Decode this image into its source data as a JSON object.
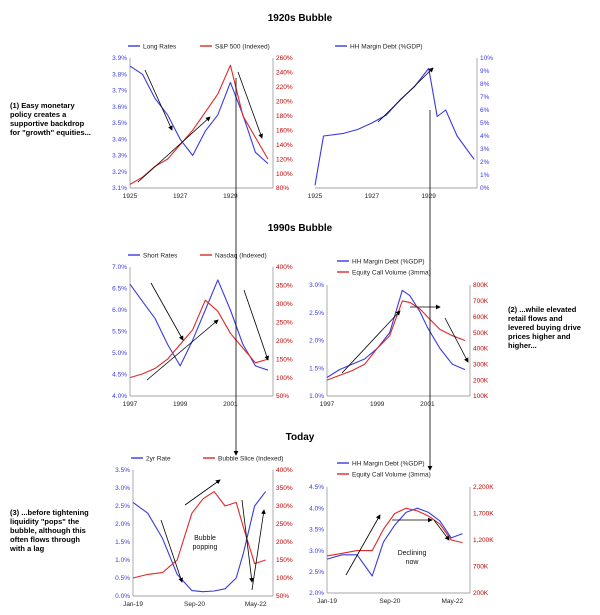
{
  "sections": {
    "s1": "1920s Bubble",
    "s2": "1990s Bubble",
    "s3": "Today"
  },
  "annotations": {
    "a1": [
      "(1) Easy monetary",
      "policy creates a",
      "supportive backdrop",
      "for \"growth\" equities..."
    ],
    "a2": [
      "(2) ...while elevated",
      "retail flows and",
      "levered buying drive",
      "prices higher and",
      "higher..."
    ],
    "a3": [
      "(3) ...before tightening",
      "liquidity \"pops\" the",
      "bubble, although this",
      "often flows through",
      "with a lag"
    ]
  },
  "colors": {
    "blue": "#3a3ae0",
    "red": "#e02828",
    "axisRed": "#c00000",
    "axis": "#888888"
  },
  "chart_data": [
    {
      "id": "c1",
      "type": "line",
      "legend": [
        "Long Rates",
        "S&P 500 (Indexed)"
      ],
      "x": [
        1925,
        1925.5,
        1926,
        1926.5,
        1927,
        1927.5,
        1928,
        1928.5,
        1929,
        1929.5,
        1930,
        1930.5
      ],
      "xlim": [
        1925,
        1930.7
      ],
      "xticks": [
        "1925",
        "1927",
        "1929"
      ],
      "xtick_pos": [
        1925,
        1927,
        1929
      ],
      "yleft": {
        "ticks": [
          "3.9%",
          "3.8%",
          "3.7%",
          "3.6%",
          "3.5%",
          "3.4%",
          "3.3%",
          "3.2%",
          "3.1%"
        ],
        "lim": [
          3.1,
          3.9
        ]
      },
      "yright": {
        "ticks": [
          "260%",
          "240%",
          "220%",
          "200%",
          "180%",
          "160%",
          "140%",
          "120%",
          "100%",
          "80%"
        ],
        "lim": [
          80,
          260
        ]
      },
      "series": [
        {
          "name": "Long Rates",
          "axis": "left",
          "color": "blue",
          "values": [
            3.85,
            3.8,
            3.65,
            3.55,
            3.4,
            3.3,
            3.45,
            3.55,
            3.75,
            3.55,
            3.32,
            3.25
          ]
        },
        {
          "name": "S&P 500 (Indexed)",
          "axis": "right",
          "color": "red",
          "values": [
            85,
            95,
            110,
            120,
            140,
            160,
            185,
            210,
            250,
            180,
            150,
            120
          ]
        }
      ]
    },
    {
      "id": "c2",
      "type": "line",
      "legend": [
        "HH Margin Debt (%GDP)"
      ],
      "x": [
        1925,
        1925.3,
        1926,
        1926.5,
        1927,
        1927.5,
        1928,
        1928.5,
        1929,
        1929.3,
        1929.6,
        1930,
        1930.6
      ],
      "xlim": [
        1925,
        1930.7
      ],
      "xticks": [
        "1925",
        "1927",
        "1929"
      ],
      "xtick_pos": [
        1925,
        1927,
        1929
      ],
      "yright": {
        "ticks": [
          "10%",
          "9%",
          "8%",
          "7%",
          "6%",
          "5%",
          "4%",
          "3%",
          "2%",
          "1%",
          "0%"
        ],
        "lim": [
          0,
          10
        ]
      },
      "series": [
        {
          "name": "HH Margin Debt (%GDP)",
          "axis": "right",
          "color": "blue",
          "values": [
            0.2,
            4,
            4.2,
            4.5,
            5,
            5.6,
            6.8,
            7.8,
            9.2,
            5.5,
            6,
            4,
            2.2
          ]
        }
      ]
    },
    {
      "id": "c3",
      "type": "line",
      "legend": [
        "Short Rates",
        "Nasdaq (Indexed)"
      ],
      "x": [
        1997,
        1997.5,
        1998,
        1998.5,
        1999,
        1999.5,
        2000,
        2000.5,
        2001,
        2001.5,
        2002,
        2002.5
      ],
      "xlim": [
        1997,
        2002.7
      ],
      "xticks": [
        "1997",
        "1999",
        "2001"
      ],
      "xtick_pos": [
        1997,
        1999,
        2001
      ],
      "yleft": {
        "ticks": [
          "7.0%",
          "6.5%",
          "6.0%",
          "5.5%",
          "5.0%",
          "4.5%",
          "4.0%"
        ],
        "lim": [
          4.0,
          7.0
        ]
      },
      "yright": {
        "ticks": [
          "400%",
          "350%",
          "300%",
          "250%",
          "200%",
          "150%",
          "100%",
          "50%"
        ],
        "lim": [
          50,
          400
        ]
      },
      "series": [
        {
          "name": "Short Rates",
          "axis": "left",
          "color": "blue",
          "values": [
            6.6,
            6.2,
            5.8,
            5.2,
            4.7,
            5.3,
            6.0,
            6.7,
            6.0,
            5.2,
            4.7,
            4.6
          ]
        },
        {
          "name": "Nasdaq (Indexed)",
          "axis": "right",
          "color": "red",
          "values": [
            100,
            110,
            125,
            150,
            190,
            230,
            310,
            280,
            220,
            180,
            140,
            150
          ]
        }
      ]
    },
    {
      "id": "c4",
      "type": "line",
      "legend": [
        "HH Margin Debt (%GDP)",
        "Equity Call Volume (3mma)"
      ],
      "x": [
        1997,
        1997.5,
        1998,
        1998.5,
        1999,
        1999.5,
        2000,
        2000.3,
        2000.7,
        2001,
        2001.5,
        2002,
        2002.5
      ],
      "xlim": [
        1997,
        2002.7
      ],
      "xticks": [
        "1997",
        "1999",
        "2001"
      ],
      "xtick_pos": [
        1997,
        1999,
        2001
      ],
      "yleft": {
        "ticks": [
          "3.0%",
          "2.5%",
          "2.0%",
          "1.5%",
          "1.0%"
        ],
        "lim": [
          1.0,
          3.1
        ]
      },
      "yright": {
        "ticks": [
          "800K",
          "700K",
          "600K",
          "500K",
          "400K",
          "300K",
          "200K",
          "100K"
        ],
        "lim": [
          100,
          800
        ]
      },
      "series": [
        {
          "name": "HH Margin Debt (%GDP)",
          "axis": "left",
          "color": "blue",
          "values": [
            1.35,
            1.5,
            1.6,
            1.7,
            1.9,
            2.2,
            3.0,
            2.9,
            2.6,
            2.3,
            1.9,
            1.6,
            1.5
          ]
        },
        {
          "name": "Equity Call Volume (3mma)",
          "axis": "right",
          "color": "red",
          "values": [
            200,
            230,
            260,
            300,
            400,
            480,
            700,
            690,
            650,
            600,
            520,
            480,
            450
          ]
        }
      ]
    },
    {
      "id": "c5",
      "type": "line",
      "legend": [
        "2yr Rate",
        "Bubble Slice (Indexed)"
      ],
      "x": [
        2019.0,
        2019.4,
        2019.8,
        2020.2,
        2020.6,
        2020.9,
        2021.2,
        2021.5,
        2021.8,
        2022.0,
        2022.3,
        2022.6
      ],
      "xlim": [
        2019.0,
        2022.8
      ],
      "xticks": [
        "Jan-19",
        "Sep-20",
        "May-22"
      ],
      "xtick_pos": [
        2019.0,
        2020.67,
        2022.33
      ],
      "yleft": {
        "ticks": [
          "3.5%",
          "3.0%",
          "2.5%",
          "2.0%",
          "1.5%",
          "1.0%",
          "0.5%",
          "0.0%"
        ],
        "lim": [
          0,
          3.5
        ]
      },
      "yright": {
        "ticks": [
          "400%",
          "350%",
          "300%",
          "250%",
          "200%",
          "150%",
          "100%",
          "50%"
        ],
        "lim": [
          50,
          400
        ]
      },
      "series": [
        {
          "name": "2yr Rate",
          "axis": "left",
          "color": "blue",
          "values": [
            2.6,
            2.3,
            1.6,
            0.6,
            0.15,
            0.12,
            0.14,
            0.2,
            0.5,
            1.2,
            2.5,
            2.9
          ]
        },
        {
          "name": "Bubble Slice (Indexed)",
          "axis": "right",
          "color": "red",
          "values": [
            100,
            110,
            115,
            150,
            280,
            320,
            340,
            300,
            310,
            240,
            140,
            150
          ]
        }
      ],
      "labels": [
        "Bubble",
        "popping"
      ]
    },
    {
      "id": "c6",
      "type": "line",
      "legend": [
        "HH Margin Debt (%GDP)",
        "Equity Call Volume (3mma)"
      ],
      "x": [
        2019.0,
        2019.4,
        2019.8,
        2020.2,
        2020.5,
        2020.8,
        2021.1,
        2021.4,
        2021.7,
        2022.0,
        2022.3,
        2022.6
      ],
      "xlim": [
        2019.0,
        2022.8
      ],
      "xticks": [
        "Jan-19",
        "Sep-20",
        "May-22"
      ],
      "xtick_pos": [
        2019.0,
        2020.67,
        2022.33
      ],
      "yleft": {
        "ticks": [
          "4.5%",
          "4.0%",
          "3.5%",
          "3.0%",
          "2.5%",
          "2.0%"
        ],
        "lim": [
          2.0,
          4.5
        ]
      },
      "yright": {
        "ticks": [
          "2,200K",
          "1,700K",
          "1,200K",
          "700K",
          "200K"
        ],
        "lim": [
          200,
          2200
        ]
      },
      "series": [
        {
          "name": "HH Margin Debt (%GDP)",
          "axis": "left",
          "color": "blue",
          "values": [
            2.8,
            2.9,
            2.9,
            2.4,
            3.2,
            3.6,
            3.9,
            4.0,
            3.9,
            3.7,
            3.3,
            3.4
          ]
        },
        {
          "name": "Equity Call Volume (3mma)",
          "axis": "right",
          "color": "red",
          "values": [
            900,
            950,
            1000,
            1000,
            1400,
            1700,
            1800,
            1750,
            1650,
            1500,
            1200,
            1150
          ]
        }
      ],
      "labels": [
        "Declining",
        "now"
      ]
    }
  ]
}
